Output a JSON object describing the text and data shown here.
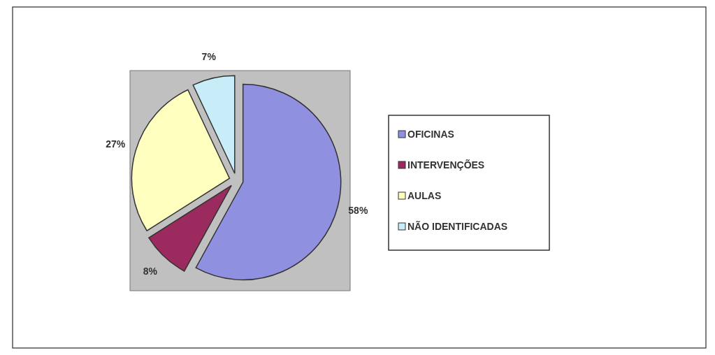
{
  "chart_data": {
    "type": "pie",
    "categories": [
      "OFICINAS",
      "INTERVENÇÕES",
      "AULAS",
      "NÃO IDENTIFICADAS"
    ],
    "values": [
      58,
      8,
      27,
      7
    ],
    "colors": [
      "#8f90e0",
      "#9b2b5e",
      "#ffffc0",
      "#c8ecf8"
    ],
    "value_labels": [
      "58%",
      "8%",
      "27%",
      "7%"
    ],
    "legend": "right"
  }
}
